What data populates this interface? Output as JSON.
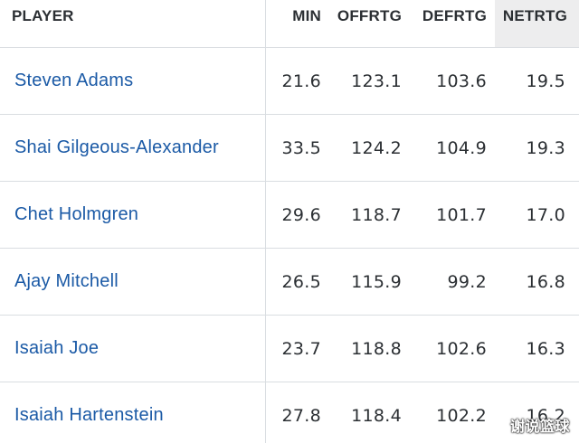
{
  "table": {
    "headers": {
      "player": "PLAYER",
      "min": "MIN",
      "offrtg": "OFFRTG",
      "defrtg": "DEFRTG",
      "netrtg": "NETRTG"
    },
    "rows": [
      {
        "player": "Steven Adams",
        "min": "21.6",
        "offrtg": "123.1",
        "defrtg": "103.6",
        "netrtg": "19.5"
      },
      {
        "player": "Shai Gilgeous-Alexander",
        "min": "33.5",
        "offrtg": "124.2",
        "defrtg": "104.9",
        "netrtg": "19.3"
      },
      {
        "player": "Chet Holmgren",
        "min": "29.6",
        "offrtg": "118.7",
        "defrtg": "101.7",
        "netrtg": "17.0"
      },
      {
        "player": "Ajay Mitchell",
        "min": "26.5",
        "offrtg": "115.9",
        "defrtg": "99.2",
        "netrtg": "16.8"
      },
      {
        "player": "Isaiah Joe",
        "min": "23.7",
        "offrtg": "118.8",
        "defrtg": "102.6",
        "netrtg": "16.3"
      },
      {
        "player": "Isaiah Hartenstein",
        "min": "27.8",
        "offrtg": "118.4",
        "defrtg": "102.2",
        "netrtg": "16.2"
      }
    ],
    "sorted_column_bg": "#ededee",
    "player_link_color": "#1b5aa6"
  },
  "watermark": "谢说篮球"
}
